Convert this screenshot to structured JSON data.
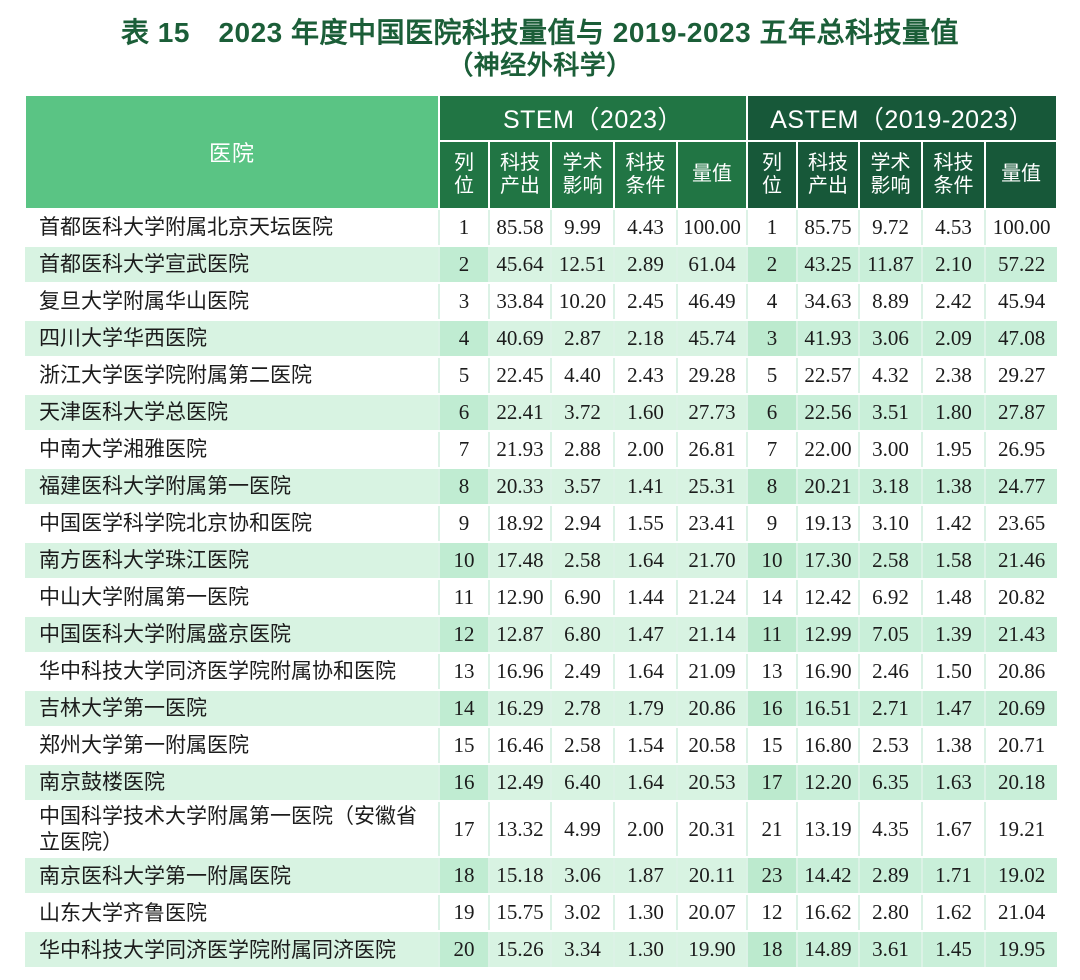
{
  "title": {
    "line1": "表 15　2023 年度中国医院科技量值与 2019-2023 五年总科技量值",
    "line2": "（神经外科学）"
  },
  "table": {
    "hospital_header": "医院",
    "groups": [
      {
        "label": "STEM（2023）"
      },
      {
        "label": "ASTEM（2019-2023）"
      }
    ],
    "sub_headers": [
      "列位",
      "科技产出",
      "学术影响",
      "科技条件",
      "量值"
    ],
    "rows": [
      {
        "hospital": "首都医科大学附属北京天坛医院",
        "stem": [
          "1",
          "85.58",
          "9.99",
          "4.43",
          "100.00"
        ],
        "astem": [
          "1",
          "85.75",
          "9.72",
          "4.53",
          "100.00"
        ]
      },
      {
        "hospital": "首都医科大学宣武医院",
        "stem": [
          "2",
          "45.64",
          "12.51",
          "2.89",
          "61.04"
        ],
        "astem": [
          "2",
          "43.25",
          "11.87",
          "2.10",
          "57.22"
        ]
      },
      {
        "hospital": "复旦大学附属华山医院",
        "stem": [
          "3",
          "33.84",
          "10.20",
          "2.45",
          "46.49"
        ],
        "astem": [
          "4",
          "34.63",
          "8.89",
          "2.42",
          "45.94"
        ]
      },
      {
        "hospital": "四川大学华西医院",
        "stem": [
          "4",
          "40.69",
          "2.87",
          "2.18",
          "45.74"
        ],
        "astem": [
          "3",
          "41.93",
          "3.06",
          "2.09",
          "47.08"
        ]
      },
      {
        "hospital": "浙江大学医学院附属第二医院",
        "stem": [
          "5",
          "22.45",
          "4.40",
          "2.43",
          "29.28"
        ],
        "astem": [
          "5",
          "22.57",
          "4.32",
          "2.38",
          "29.27"
        ]
      },
      {
        "hospital": "天津医科大学总医院",
        "stem": [
          "6",
          "22.41",
          "3.72",
          "1.60",
          "27.73"
        ],
        "astem": [
          "6",
          "22.56",
          "3.51",
          "1.80",
          "27.87"
        ]
      },
      {
        "hospital": "中南大学湘雅医院",
        "stem": [
          "7",
          "21.93",
          "2.88",
          "2.00",
          "26.81"
        ],
        "astem": [
          "7",
          "22.00",
          "3.00",
          "1.95",
          "26.95"
        ]
      },
      {
        "hospital": "福建医科大学附属第一医院",
        "stem": [
          "8",
          "20.33",
          "3.57",
          "1.41",
          "25.31"
        ],
        "astem": [
          "8",
          "20.21",
          "3.18",
          "1.38",
          "24.77"
        ]
      },
      {
        "hospital": "中国医学科学院北京协和医院",
        "stem": [
          "9",
          "18.92",
          "2.94",
          "1.55",
          "23.41"
        ],
        "astem": [
          "9",
          "19.13",
          "3.10",
          "1.42",
          "23.65"
        ]
      },
      {
        "hospital": "南方医科大学珠江医院",
        "stem": [
          "10",
          "17.48",
          "2.58",
          "1.64",
          "21.70"
        ],
        "astem": [
          "10",
          "17.30",
          "2.58",
          "1.58",
          "21.46"
        ]
      },
      {
        "hospital": "中山大学附属第一医院",
        "stem": [
          "11",
          "12.90",
          "6.90",
          "1.44",
          "21.24"
        ],
        "astem": [
          "14",
          "12.42",
          "6.92",
          "1.48",
          "20.82"
        ]
      },
      {
        "hospital": "中国医科大学附属盛京医院",
        "stem": [
          "12",
          "12.87",
          "6.80",
          "1.47",
          "21.14"
        ],
        "astem": [
          "11",
          "12.99",
          "7.05",
          "1.39",
          "21.43"
        ]
      },
      {
        "hospital": "华中科技大学同济医学院附属协和医院",
        "stem": [
          "13",
          "16.96",
          "2.49",
          "1.64",
          "21.09"
        ],
        "astem": [
          "13",
          "16.90",
          "2.46",
          "1.50",
          "20.86"
        ]
      },
      {
        "hospital": "吉林大学第一医院",
        "stem": [
          "14",
          "16.29",
          "2.78",
          "1.79",
          "20.86"
        ],
        "astem": [
          "16",
          "16.51",
          "2.71",
          "1.47",
          "20.69"
        ]
      },
      {
        "hospital": "郑州大学第一附属医院",
        "stem": [
          "15",
          "16.46",
          "2.58",
          "1.54",
          "20.58"
        ],
        "astem": [
          "15",
          "16.80",
          "2.53",
          "1.38",
          "20.71"
        ]
      },
      {
        "hospital": "南京鼓楼医院",
        "stem": [
          "16",
          "12.49",
          "6.40",
          "1.64",
          "20.53"
        ],
        "astem": [
          "17",
          "12.20",
          "6.35",
          "1.63",
          "20.18"
        ]
      },
      {
        "hospital": "中国科学技术大学附属第一医院（安徽省立医院）",
        "stem": [
          "17",
          "13.32",
          "4.99",
          "2.00",
          "20.31"
        ],
        "astem": [
          "21",
          "13.19",
          "4.35",
          "1.67",
          "19.21"
        ]
      },
      {
        "hospital": "南京医科大学第一附属医院",
        "stem": [
          "18",
          "15.18",
          "3.06",
          "1.87",
          "20.11"
        ],
        "astem": [
          "23",
          "14.42",
          "2.89",
          "1.71",
          "19.02"
        ]
      },
      {
        "hospital": "山东大学齐鲁医院",
        "stem": [
          "19",
          "15.75",
          "3.02",
          "1.30",
          "20.07"
        ],
        "astem": [
          "12",
          "16.62",
          "2.80",
          "1.62",
          "21.04"
        ]
      },
      {
        "hospital": "华中科技大学同济医学院附属同济医院",
        "stem": [
          "20",
          "15.26",
          "3.34",
          "1.30",
          "19.90"
        ],
        "astem": [
          "18",
          "14.89",
          "3.61",
          "1.45",
          "19.95"
        ]
      }
    ]
  },
  "colors": {
    "title_text": "#1b5e38",
    "hospital_header_bg": "#5ac484",
    "stem_header_bg": "#217544",
    "astem_header_bg": "#175839",
    "stripe_row_bg": "#d8f3e2",
    "stripe_rank_bg": "#c0ecd2",
    "stripe_astem_bg": "#c9efd9",
    "gridline": "#dcf2e6",
    "body_text": "#1c1c1c"
  }
}
